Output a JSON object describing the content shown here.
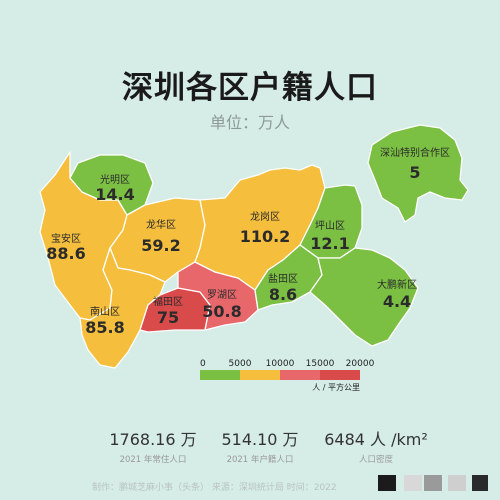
{
  "title": "深圳各区户籍人口",
  "subtitle": "单位：万人",
  "districts": [
    {
      "id": "guangming",
      "name": "光明区",
      "value": "14.4",
      "color": "#7bc043"
    },
    {
      "id": "baoan",
      "name": "宝安区",
      "value": "88.6",
      "color": "#f5be3d"
    },
    {
      "id": "longhua",
      "name": "龙华区",
      "value": "59.2",
      "color": "#f5be3d"
    },
    {
      "id": "nanshan",
      "name": "南山区",
      "value": "85.8",
      "color": "#f5be3d"
    },
    {
      "id": "futian",
      "name": "福田区",
      "value": "75",
      "color": "#d94a4a"
    },
    {
      "id": "luohu",
      "name": "罗湖区",
      "value": "50.8",
      "color": "#e8676a"
    },
    {
      "id": "longgang",
      "name": "龙岗区",
      "value": "110.2",
      "color": "#f5be3d"
    },
    {
      "id": "pingshan",
      "name": "坪山区",
      "value": "12.1",
      "color": "#7bc043"
    },
    {
      "id": "yantian",
      "name": "盐田区",
      "value": "8.6",
      "color": "#7bc043"
    },
    {
      "id": "dapeng",
      "name": "大鹏新区",
      "value": "4.4",
      "color": "#7bc043"
    },
    {
      "id": "shenshan",
      "name": "深汕特别合作区",
      "value": "5",
      "color": "#7bc043"
    }
  ],
  "legend": {
    "ticks": [
      "0",
      "5000",
      "10000",
      "15000",
      "20000"
    ],
    "colors": [
      "#7bc043",
      "#f5be3d",
      "#e8676a",
      "#d94a4a"
    ],
    "unit": "人 / 平方公里"
  },
  "stats": [
    {
      "value": "1768.16 万",
      "label": "2021 年常住人口"
    },
    {
      "value": "514.10 万",
      "label": "2021 年户籍人口"
    },
    {
      "value": "6484 人 /km²",
      "label": "人口密度"
    }
  ],
  "footer": "制作：鹏城芝麻小事（头条）    来源：深圳统计局    时间：2022"
}
